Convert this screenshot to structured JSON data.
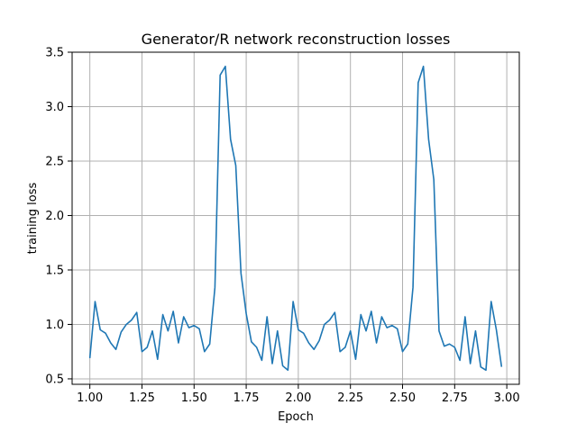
{
  "chart_data": {
    "type": "line",
    "title": "Generator/R network reconstruction losses",
    "xlabel": "Epoch",
    "ylabel": "training loss",
    "xlim": [
      0.915,
      3.06
    ],
    "ylim": [
      0.45,
      3.5
    ],
    "xticks": [
      "1.00",
      "1.25",
      "1.50",
      "1.75",
      "2.00",
      "2.25",
      "2.50",
      "2.75",
      "3.00"
    ],
    "yticks": [
      "0.5",
      "1.0",
      "1.5",
      "2.0",
      "2.5",
      "3.0",
      "3.5"
    ],
    "grid": true,
    "legend": "none",
    "series": [
      {
        "color": "#1f77b4",
        "x": [
          1.0,
          1.025,
          1.05,
          1.075,
          1.1,
          1.125,
          1.15,
          1.175,
          1.2,
          1.225,
          1.25,
          1.275,
          1.3,
          1.325,
          1.35,
          1.375,
          1.4,
          1.425,
          1.45,
          1.475,
          1.5,
          1.525,
          1.55,
          1.575,
          1.6,
          1.625,
          1.65,
          1.675,
          1.7,
          1.725,
          1.75,
          1.775,
          1.8,
          1.825,
          1.85,
          1.875,
          1.9,
          1.925,
          1.95,
          1.975,
          2.0,
          2.025,
          2.05,
          2.075,
          2.1,
          2.125,
          2.15,
          2.175,
          2.2,
          2.225,
          2.25,
          2.275,
          2.3,
          2.325,
          2.35,
          2.375,
          2.4,
          2.425,
          2.45,
          2.475,
          2.5,
          2.525,
          2.55,
          2.575,
          2.6,
          2.625,
          2.65,
          2.675,
          2.7,
          2.725,
          2.75,
          2.775,
          2.8,
          2.825,
          2.85,
          2.875,
          2.9,
          2.925,
          2.95,
          2.975
        ],
        "y": [
          0.69,
          1.21,
          0.95,
          0.92,
          0.83,
          0.77,
          0.93,
          1.0,
          1.04,
          1.11,
          0.75,
          0.79,
          0.94,
          0.68,
          1.09,
          0.94,
          1.12,
          0.83,
          1.07,
          0.97,
          0.99,
          0.96,
          0.75,
          0.82,
          1.34,
          3.29,
          3.37,
          2.7,
          2.46,
          1.47,
          1.1,
          0.84,
          0.79,
          0.67,
          1.07,
          0.64,
          0.94,
          0.62,
          0.58,
          1.21,
          0.95,
          0.92,
          0.83,
          0.77,
          0.85,
          1.0,
          1.04,
          1.11,
          0.75,
          0.79,
          0.94,
          0.68,
          1.09,
          0.94,
          1.12,
          0.83,
          1.07,
          0.97,
          0.99,
          0.96,
          0.75,
          0.82,
          1.34,
          3.22,
          3.37,
          2.7,
          2.33,
          0.94,
          0.8,
          0.82,
          0.79,
          0.67,
          1.07,
          0.64,
          0.94,
          0.61,
          0.58,
          1.21,
          0.95,
          0.61
        ]
      }
    ]
  }
}
